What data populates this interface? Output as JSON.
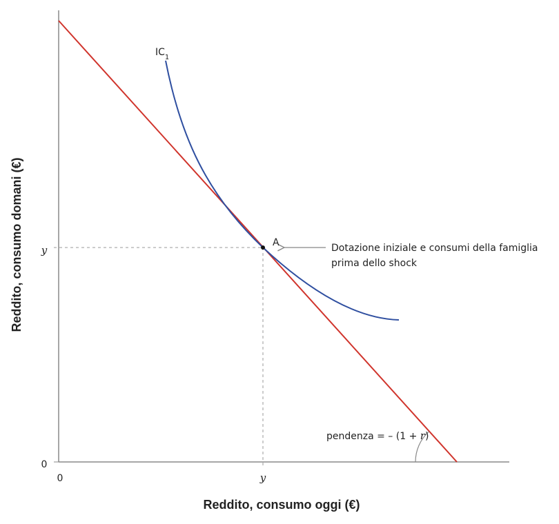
{
  "axes": {
    "x_title": "Reddito, consumo oggi (€)",
    "y_title": "Reddito, consumo domani (€)",
    "origin_x": "0",
    "origin_y": "0",
    "x_mark": "y",
    "y_mark": "y"
  },
  "curve": {
    "label": "IC",
    "subscript": "1"
  },
  "point": {
    "label": "A",
    "note_line1": "Dotazione iniziale e consumi della famiglia",
    "note_line2": "prima dello shock"
  },
  "slope": {
    "prefix": "pendenza = – (1 + ",
    "variable": "r",
    "suffix": ")"
  }
}
